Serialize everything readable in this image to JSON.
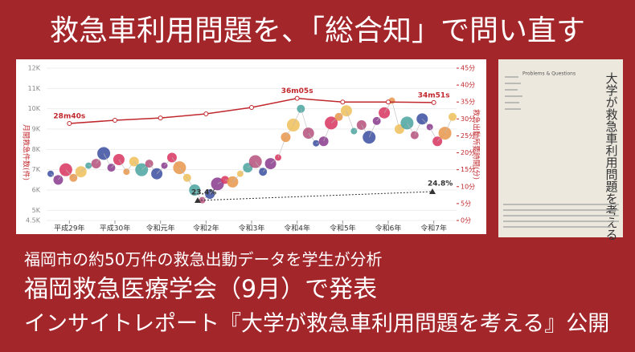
{
  "header": {
    "title": "救急車利用問題を、「総合知」で問い直す"
  },
  "chart_data": {
    "type": "combo",
    "y_label": "月間救急件数(件)",
    "y2_label": "救急出動所要時間(分)",
    "categories": [
      "平成29年",
      "平成30年",
      "令和元年",
      "令和2年",
      "令和3年",
      "令和4年",
      "令和5年",
      "令和6年",
      "令和7年"
    ],
    "ylim": [
      4500,
      12000
    ],
    "yticks": [
      {
        "value": 4500,
        "label": "4.5K"
      },
      {
        "value": 5000,
        "label": "5K"
      },
      {
        "value": 6000,
        "label": "6K"
      },
      {
        "value": 7000,
        "label": "7K"
      },
      {
        "value": 8000,
        "label": "8K"
      },
      {
        "value": 9000,
        "label": "9K"
      },
      {
        "value": 10000,
        "label": "10K"
      },
      {
        "value": 11000,
        "label": "11K"
      },
      {
        "value": 12000,
        "label": "12K"
      }
    ],
    "y2lim": [
      0,
      45
    ],
    "y2ticks": [
      {
        "value": 0,
        "label": "0分"
      },
      {
        "value": 5,
        "label": "5分"
      },
      {
        "value": 10,
        "label": "10分"
      },
      {
        "value": 15,
        "label": "15分"
      },
      {
        "value": 20,
        "label": "20分"
      },
      {
        "value": 25,
        "label": "25分"
      },
      {
        "value": 30,
        "label": "30分"
      },
      {
        "value": 35,
        "label": "35分"
      },
      {
        "value": 40,
        "label": "40分"
      },
      {
        "value": 45,
        "label": "45分"
      }
    ],
    "series": [
      {
        "type": "bubble",
        "colors": [
          "#3b4ea0",
          "#8a3a8c",
          "#d8345f",
          "#e8954a",
          "#f0c05a",
          "#4aa3a0",
          "#b4507a"
        ],
        "values": [
          6800,
          6500,
          7000,
          6600,
          6900,
          7200,
          7300,
          7800,
          7100,
          7500,
          6900,
          7400,
          7000,
          7300,
          6800,
          7200,
          7600,
          7100,
          6600,
          6000,
          5500,
          5800,
          6300,
          6500,
          6400,
          6800,
          7100,
          7400,
          6900,
          7300,
          7600,
          8600,
          9200,
          10000,
          8800,
          8300,
          8400,
          9300,
          9600,
          9900,
          8900,
          9200,
          8600,
          9400,
          9800,
          10400,
          9000,
          9300,
          8700,
          9500,
          9100,
          8400,
          8800,
          9600
        ]
      },
      {
        "type": "line",
        "axis": "y2",
        "color": "#c0282d",
        "values": [
          28.67,
          29.6,
          30.3,
          31.5,
          33.4,
          36.08,
          35,
          35,
          34.85
        ],
        "value_labels": [
          "28m40s",
          null,
          null,
          null,
          null,
          "36m05s",
          null,
          null,
          "34m51s"
        ]
      }
    ],
    "trend_labels": [
      "23.4%",
      "24.8%"
    ]
  },
  "lines": [
    "福岡市の約50万件の救急出動データを学生が分析",
    "福岡救急医療学会（9月）で発表",
    "インサイトレポート『大学が救急車利用問題を考える』公開"
  ],
  "book": {
    "title": "大学が救急車利用問題を考える",
    "subtitle": "Problems & Questions"
  }
}
